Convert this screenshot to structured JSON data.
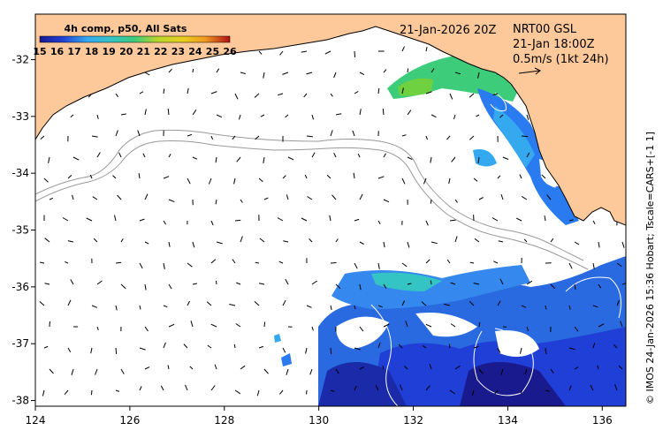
{
  "map": {
    "x_ticks": [
      "124",
      "126",
      "128",
      "130",
      "132",
      "134",
      "136"
    ],
    "y_ticks": [
      "-32",
      "-33",
      "-34",
      "-35",
      "-36",
      "-37",
      "-38"
    ],
    "x_range": [
      124,
      136.5
    ],
    "y_range": [
      -38.1,
      -31.2
    ]
  },
  "colorbar": {
    "title": "4h comp, p50, All Sats",
    "ticks": [
      "15",
      "16",
      "17",
      "18",
      "19",
      "20",
      "21",
      "22",
      "23",
      "24",
      "25",
      "26"
    ],
    "colors": [
      "#1a1a8f",
      "#1f3fd6",
      "#2a7bf0",
      "#34a9f0",
      "#35c4c4",
      "#3dcc7a",
      "#6fd040",
      "#b8d62a",
      "#e8d020",
      "#f09a20",
      "#e0501a",
      "#b01010"
    ]
  },
  "annotations": {
    "date": "21-Jan-2026 20Z",
    "product": "NRT00 GSL",
    "valid": "21-Jan 18:00Z",
    "scale": "0.5m/s (1kt 24h)"
  },
  "credit": "© IMOS 24-Jan-2026 15:36 Hobart; Tscale=CARS+[-1 1]",
  "colors": {
    "land": "#fdc99a",
    "ocean": "#ffffff",
    "bathymetry": "#999999",
    "sst_contour": "#ffffff"
  }
}
